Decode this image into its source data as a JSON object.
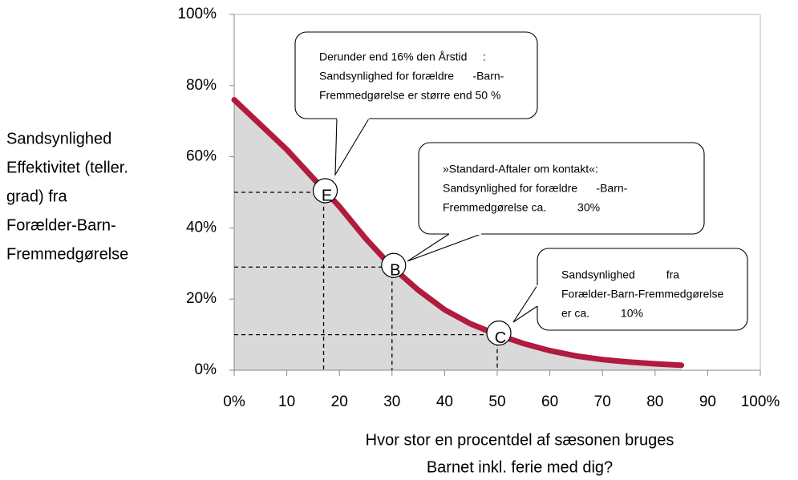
{
  "chart_data": {
    "type": "area",
    "x": [
      0,
      5,
      10,
      15,
      20,
      25,
      30,
      35,
      40,
      45,
      50,
      55,
      60,
      65,
      70,
      75,
      80,
      85
    ],
    "values": [
      76,
      69,
      62,
      54,
      46,
      37,
      29,
      22.5,
      17,
      13,
      10,
      7.5,
      5.5,
      4,
      3,
      2.3,
      1.8,
      1.4
    ],
    "color": "#b11b3e",
    "fill_color": "#d9d9d9",
    "xlim": [
      0,
      100
    ],
    "ylim": [
      0,
      100
    ],
    "xticks": [
      {
        "value": 0,
        "label": "0%"
      },
      10,
      20,
      30,
      40,
      50,
      60,
      70,
      80,
      90,
      {
        "value": 100,
        "label": "100%"
      }
    ],
    "yticks": [
      {
        "value": 0,
        "label": "0%"
      },
      {
        "value": 20,
        "label": "20%"
      },
      {
        "value": 40,
        "label": "40%"
      },
      {
        "value": 60,
        "label": "60%"
      },
      {
        "value": 80,
        "label": "80%"
      },
      {
        "value": 100,
        "label": "100%"
      }
    ],
    "ylabel": [
      "Sandsynlighed",
      "Effektivitet (teller.",
      "grad)  fra",
      "Forælder-Barn-",
      "Fremmedgørelse"
    ],
    "xlabel": [
      "Hvor stor en procentdel af sæsonen bruges",
      "Barnet inkl. ferie med dig?"
    ],
    "points": [
      {
        "label": "E",
        "x": 17,
        "y": 50
      },
      {
        "label": "B",
        "x": 30,
        "y": 29
      },
      {
        "label": "C",
        "x": 50,
        "y": 10
      }
    ],
    "annotations": [
      {
        "lines": [
          "Derunder end 16% den Årstid     :",
          "Sandsynlighed for forældre      -Barn-",
          "Fremmedgørelse er større end 50 %"
        ]
      },
      {
        "lines": [
          "»Standard-Aftaler om kontakt«:",
          "Sandsynlighed for forældre      -Barn-",
          "Fremmedgørelse ca.          30%"
        ]
      },
      {
        "lines": [
          "Sandsynlighed          fra",
          "Forælder-Barn-Fremmedgørelse",
          "er ca.          10%"
        ]
      }
    ]
  }
}
